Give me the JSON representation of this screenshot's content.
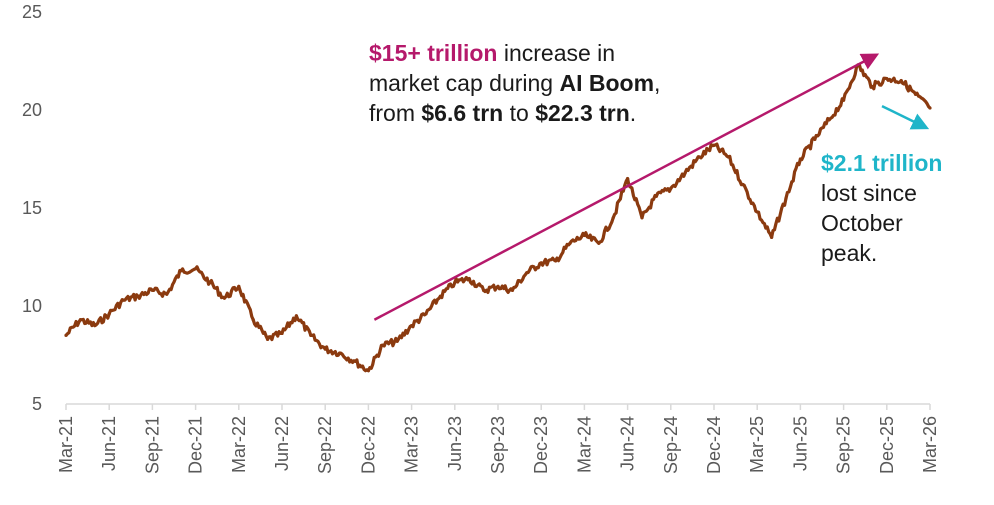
{
  "chart_data": {
    "type": "line",
    "ylim": [
      5,
      25
    ],
    "yticks": [
      5,
      10,
      15,
      20,
      25
    ],
    "xticks": [
      "Mar-21",
      "Jun-21",
      "Sep-21",
      "Dec-21",
      "Mar-22",
      "Jun-22",
      "Sep-22",
      "Dec-22",
      "Mar-23",
      "Jun-23",
      "Sep-23",
      "Dec-23",
      "Mar-24",
      "Jun-24",
      "Sep-24",
      "Dec-24",
      "Mar-25",
      "Jun-25",
      "Sep-25",
      "Dec-25",
      "Mar-26"
    ],
    "series": [
      {
        "color": "#8B3A0F",
        "x": [
          "Mar-21",
          "Apr-21",
          "May-21",
          "Jun-21",
          "Jul-21",
          "Aug-21",
          "Sep-21",
          "Oct-21",
          "Nov-21",
          "Dec-21",
          "Jan-22",
          "Feb-22",
          "Mar-22",
          "Apr-22",
          "May-22",
          "Jun-22",
          "Jul-22",
          "Aug-22",
          "Sep-22",
          "Oct-22",
          "Nov-22",
          "Dec-22",
          "Jan-23",
          "Feb-23",
          "Mar-23",
          "Apr-23",
          "May-23",
          "Jun-23",
          "Jul-23",
          "Aug-23",
          "Sep-23",
          "Oct-23",
          "Nov-23",
          "Dec-23",
          "Jan-24",
          "Feb-24",
          "Mar-24",
          "Apr-24",
          "May-24",
          "Jun-24",
          "Jul-24",
          "Aug-24",
          "Sep-24",
          "Oct-24",
          "Nov-24",
          "Dec-24",
          "Jan-25",
          "Feb-25",
          "Mar-25",
          "Apr-25",
          "May-25",
          "Jun-25",
          "Jul-25",
          "Aug-25",
          "Sep-25",
          "Oct-25",
          "Nov-25",
          "Dec-25",
          "Jan-26",
          "Feb-26",
          "Mar-26"
        ],
        "values": [
          8.5,
          9.3,
          9.0,
          9.6,
          10.3,
          10.5,
          10.8,
          10.6,
          11.8,
          11.9,
          11.2,
          10.4,
          11.0,
          9.3,
          8.3,
          8.6,
          9.5,
          8.5,
          7.8,
          7.6,
          7.2,
          6.7,
          8.0,
          8.2,
          9.0,
          9.6,
          10.5,
          11.2,
          11.4,
          10.8,
          11.0,
          10.8,
          11.7,
          12.2,
          12.3,
          13.2,
          13.6,
          13.2,
          14.5,
          16.5,
          14.5,
          15.6,
          16.0,
          16.8,
          17.6,
          18.2,
          17.6,
          16.2,
          14.8,
          13.5,
          15.5,
          17.5,
          18.5,
          19.5,
          20.5,
          22.3,
          21.2,
          21.6,
          21.5,
          20.8,
          20.1
        ]
      }
    ],
    "annotations": [
      {
        "arrow_from": [
          "Dec-22",
          9.3
        ],
        "arrow_to": [
          "Oct-25",
          22.8
        ],
        "color": "#B5196B"
      },
      {
        "arrow_from": [
          "Oct-25",
          20.2
        ],
        "arrow_to": [
          "Mar-26",
          19.1
        ],
        "color": "#1FB5C9"
      }
    ]
  },
  "annotation_boom": {
    "highlight": "$15+ trillion",
    "line1": " increase in",
    "line2a": "market cap during ",
    "line2b": "AI Boom",
    "line2c": ",",
    "line3a": "from ",
    "line3b": "$6.6 trn",
    "line3c": " to ",
    "line3d": "$22.3 trn",
    "line3e": ".",
    "highlight_color": "#B5196B"
  },
  "annotation_loss": {
    "highlight": "$2.1 trillion",
    "line1": "lost since",
    "line2": "October",
    "line3": "peak.",
    "highlight_color": "#1FB5C9"
  }
}
